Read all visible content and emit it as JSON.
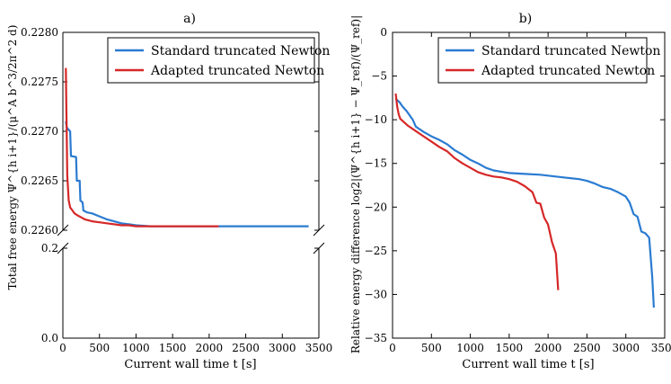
{
  "figure": {
    "panels": [
      {
        "panel_label": "a)",
        "xlabel": "Current wall time t [s]",
        "ylabel": "Total free energy Ψ^{h i+1}/(μ^A b^3/2π^2 d)"
      },
      {
        "panel_label": "b)",
        "xlabel": "Current wall time t [s]",
        "ylabel": "Relative energy difference log2|(Ψ^{h i+1} − Ψ_ref)/(Ψ_ref)|"
      }
    ],
    "colors": {
      "standard": "#2a7bd1",
      "adapted": "#d62728"
    }
  },
  "chart_data": [
    {
      "type": "line",
      "title": "a)",
      "xlabel": "Current wall time t [s]",
      "ylabel": "Total free energy Ψ^{h i+1}/(μ^A b^3/2π^2 d)",
      "xlim": [
        0,
        3500
      ],
      "xticks": [
        "0",
        "500",
        "1000",
        "1500",
        "2000",
        "2500",
        "3000",
        "3500"
      ],
      "broken_y_axis": true,
      "upper_ylim": [
        0.226,
        0.228
      ],
      "upper_yticks": [
        "0.2260",
        "0.2265",
        "0.2270",
        "0.2275",
        "0.2280"
      ],
      "lower_ylim": [
        0.0,
        0.2
      ],
      "lower_yticks": [
        "0.0",
        "0.2"
      ],
      "legend": "top-right",
      "grid": false,
      "series": [
        {
          "name": "Standard truncated Newton",
          "color": "#2a7bd1",
          "x": [
            40,
            50,
            60,
            100,
            110,
            180,
            190,
            230,
            240,
            270,
            280,
            330,
            400,
            500,
            600,
            700,
            800,
            900,
            1000,
            1200,
            1500,
            2000,
            2500,
            3000,
            3360
          ],
          "y": [
            0.2271,
            0.22705,
            0.22703,
            0.227,
            0.22675,
            0.22674,
            0.2265,
            0.2265,
            0.2263,
            0.22628,
            0.2262,
            0.22618,
            0.22617,
            0.22614,
            0.22611,
            0.22609,
            0.22607,
            0.22606,
            0.22605,
            0.22604,
            0.22604,
            0.22604,
            0.22604,
            0.22604,
            0.22604
          ]
        },
        {
          "name": "Adapted truncated Newton",
          "color": "#d62728",
          "x": [
            40,
            50,
            60,
            80,
            100,
            130,
            160,
            200,
            250,
            300,
            400,
            500,
            600,
            700,
            800,
            900,
            1000,
            1200,
            1500,
            1800,
            2130
          ],
          "y": [
            0.22764,
            0.2271,
            0.22655,
            0.2263,
            0.22623,
            0.2262,
            0.22617,
            0.22615,
            0.22613,
            0.22611,
            0.22609,
            0.22608,
            0.22607,
            0.22606,
            0.22605,
            0.22605,
            0.22604,
            0.22604,
            0.22604,
            0.22604,
            0.22604
          ]
        }
      ]
    },
    {
      "type": "line",
      "title": "b)",
      "xlabel": "Current wall time t [s]",
      "ylabel": "Relative energy difference log2|(Ψ^{h i+1} − Ψ_ref)/(Ψ_ref)|",
      "xlim": [
        0,
        3500
      ],
      "ylim": [
        -35,
        0
      ],
      "xticks": [
        "0",
        "500",
        "1000",
        "1500",
        "2000",
        "2500",
        "3000",
        "3500"
      ],
      "yticks": [
        "−35",
        "−30",
        "−25",
        "−20",
        "−15",
        "−10",
        "−5",
        "0"
      ],
      "legend": "top-right",
      "grid": false,
      "series": [
        {
          "name": "Standard truncated Newton",
          "color": "#2a7bd1",
          "x": [
            40,
            90,
            130,
            180,
            260,
            300,
            400,
            500,
            600,
            700,
            800,
            900,
            1000,
            1100,
            1200,
            1300,
            1500,
            1700,
            1900,
            2000,
            2200,
            2400,
            2500,
            2600,
            2700,
            2800,
            2900,
            3000,
            3050,
            3100,
            3150,
            3200,
            3250,
            3300,
            3340,
            3360
          ],
          "y": [
            -7.6,
            -8.0,
            -8.5,
            -9.0,
            -10.0,
            -10.8,
            -11.4,
            -11.9,
            -12.3,
            -12.8,
            -13.5,
            -14.0,
            -14.6,
            -15.0,
            -15.5,
            -15.8,
            -16.1,
            -16.2,
            -16.3,
            -16.4,
            -16.6,
            -16.8,
            -17.0,
            -17.3,
            -17.7,
            -17.9,
            -18.3,
            -18.8,
            -19.5,
            -20.8,
            -21.1,
            -22.8,
            -23.0,
            -23.5,
            -28.0,
            -31.5
          ]
        },
        {
          "name": "Adapted truncated Newton",
          "color": "#d62728",
          "x": [
            40,
            60,
            80,
            100,
            150,
            200,
            300,
            400,
            500,
            600,
            700,
            800,
            900,
            1000,
            1100,
            1200,
            1300,
            1400,
            1500,
            1600,
            1700,
            1800,
            1850,
            1900,
            1950,
            2000,
            2050,
            2100,
            2130
          ],
          "y": [
            -7.0,
            -8.5,
            -9.4,
            -9.9,
            -10.3,
            -10.7,
            -11.3,
            -11.9,
            -12.5,
            -13.1,
            -13.6,
            -14.4,
            -15.0,
            -15.5,
            -16.0,
            -16.3,
            -16.5,
            -16.6,
            -16.8,
            -17.1,
            -17.6,
            -18.3,
            -19.5,
            -19.6,
            -21.2,
            -22.0,
            -24.0,
            -25.3,
            -29.5
          ]
        }
      ]
    }
  ]
}
